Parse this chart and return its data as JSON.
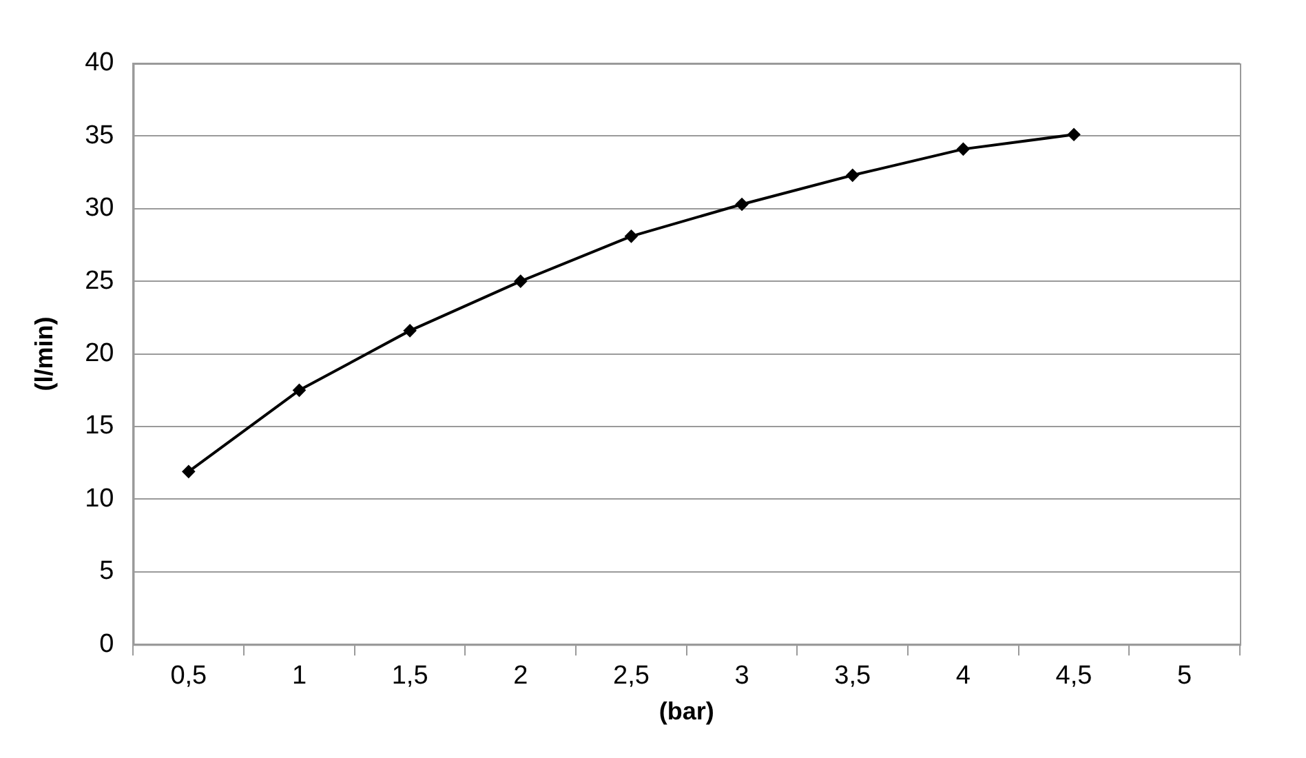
{
  "chart_data": {
    "type": "line",
    "xlabel": "(bar)",
    "ylabel": "(l/min)",
    "categories": [
      "0,5",
      "1",
      "1,5",
      "2",
      "2,5",
      "3",
      "3,5",
      "4",
      "4,5",
      "5"
    ],
    "series": [
      {
        "color": "#000000",
        "values": [
          11.9,
          17.5,
          21.6,
          25,
          28.1,
          30.3,
          32.3,
          34.1,
          35.1,
          null
        ]
      }
    ],
    "ylim": [
      0,
      40
    ],
    "yticks": [
      0,
      5,
      10,
      15,
      20,
      25,
      30,
      35,
      40
    ],
    "grid": "y",
    "legend": false,
    "marker": "diamond",
    "line_style": "solid"
  }
}
